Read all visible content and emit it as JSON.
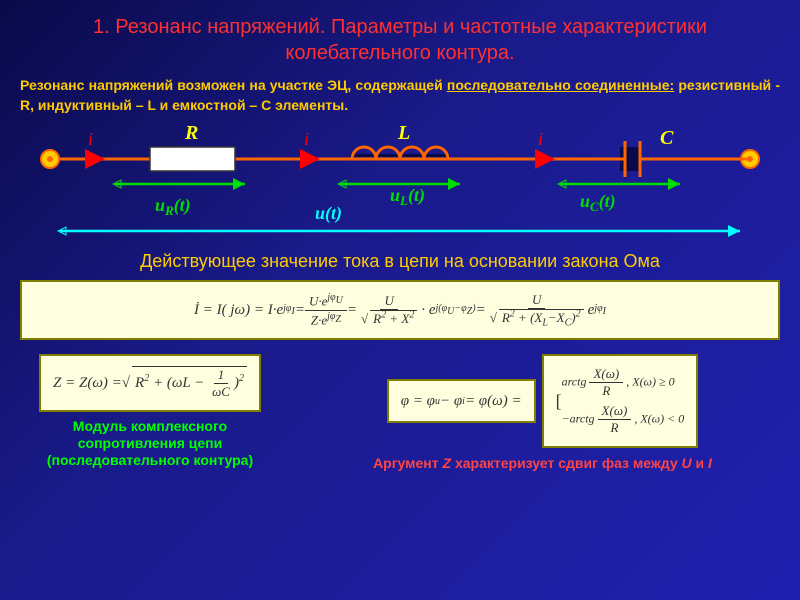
{
  "title": "1.   Резонанс напряжений. Параметры и частотные характеристики колебательного контура.",
  "intro_html": "Резонанс напряжений возможен на участке ЭЦ, содержащей <span class='ul'>последовательно соединенные:</span> резистивный - R, индуктивный – L и емкостной – C элементы.",
  "circuit": {
    "wire_color": "#ff6600",
    "node_fill": "#ffcc00",
    "arrow_color": "#ff0000",
    "green": "#00dd00",
    "cyan": "#00ffff",
    "text_yellow": "#ffff00",
    "labels": {
      "R": "R",
      "L": "L",
      "C": "C",
      "i": "i",
      "uR": "u",
      "uR_sub": "R",
      "uR_arg": "(t)",
      "uL": "u",
      "uL_sub": "L",
      "uL_arg": "(t)",
      "uC": "u",
      "uC_sub": "C",
      "uC_arg": "(t)",
      "u": "u(t)"
    }
  },
  "statement": "Действующее значение тока в цепи на основании закона Ома",
  "formula_long_html": "İ = I( jω) = I·e<sup>jφ<sub>I</sub></sup> = <span class='frac'><span class='num'>U·e<sup>jφ<sub>U</sub></sup></span><span class='den'>Z·e<sup>jφ<sub>Z</sub></sup></span></span> = <span class='frac'><span class='num'>U</span><span class='den'><span class='root'></span><span class='sqrt'>R<sup>2</sup> + X<sup>2</sup></span></span></span> · e<sup>j(φ<sub>U</sub>−φ<sub>Z</sub>)</sup> = <span class='frac'><span class='num'>U</span><span class='den'><span class='root'></span><span class='sqrt'>R<sup>2</sup> + (X<sub>L</sub>−X<sub>C</sub>)<sup>2</sup></span></span></span> e<sup>jφ<sub>I</sub></sup>",
  "formula_z_html": "Z = Z(ω) = <span class='root'></span><span class='sqrt'>R<sup>2</sup> + (ωL − <span class='frac'><span class='num'>1</span><span class='den'>ωC</span></span>)<sup>2</sup></span>",
  "formula_phi_html": "φ = φ<sub>u</sub> − φ<sub>i</sub> = φ(ω) =",
  "formula_cases_html": "<span class='brk'>[</span> <span style='display:inline-flex;flex-direction:column;font-size:12px;gap:4px;'><span>arctg <span class='frac'><span class='num'>X(ω)</span><span class='den'>R</span></span> , X(ω) ≥ 0</span><span>−arctg <span class='frac'><span class='num'>X(ω)</span><span class='den'>R</span></span> , X(ω) &lt; 0</span></span>",
  "caption1": "Модуль комплексного сопротивления цепи (последовательного контура)",
  "caption2_html": "Аргумент <i>Z</i> характеризует сдвиг фаз между <i>U</i> и <i>I</i>"
}
